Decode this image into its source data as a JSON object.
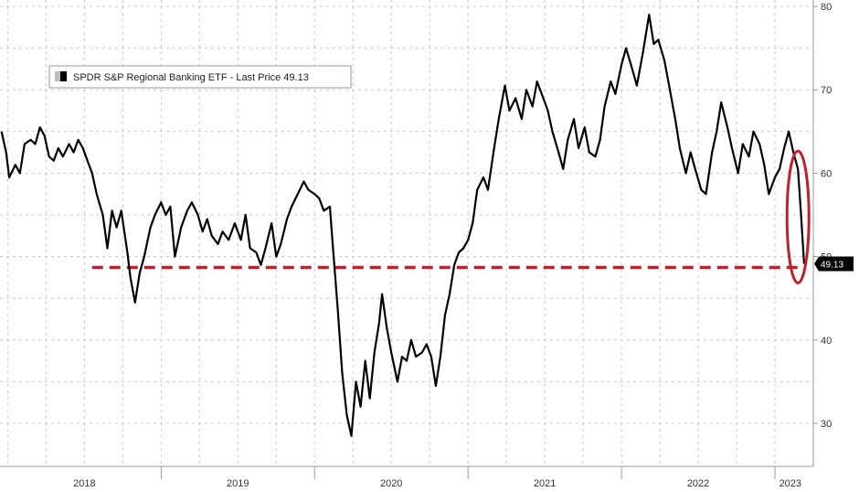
{
  "chart_data": {
    "type": "line",
    "title": "",
    "legend": {
      "label": "SPDR S&P Regional Banking ETF - Last Price 49.13",
      "placement": "top-left"
    },
    "y_axis": {
      "side": "right",
      "range": [
        25,
        80
      ],
      "ticks": [
        "80",
        "70",
        "60",
        "50",
        "40",
        "30"
      ]
    },
    "x_axis": {
      "range": [
        2017.95,
        2023.25
      ],
      "years": [
        {
          "label": "2018",
          "center": 2018.5
        },
        {
          "label": "2019",
          "center": 2019.5
        },
        {
          "label": "2020",
          "center": 2020.5
        },
        {
          "label": "2021",
          "center": 2021.5
        },
        {
          "label": "2022",
          "center": 2022.5
        },
        {
          "label": "2023",
          "center": 2023.1
        }
      ],
      "boundaries": [
        2019.0,
        2020.0,
        2021.0,
        2022.0,
        2023.0
      ]
    },
    "grid": true,
    "last_value": {
      "label": "49.13",
      "value": 49.13
    },
    "reference_line": {
      "value": 48.7,
      "from": 2018.55,
      "to": 2023.2,
      "color": "#c0202a"
    },
    "highlight_ellipse": {
      "x": 2023.15,
      "y_top": 62,
      "y_bottom": 47.5,
      "color": "#c0202a"
    },
    "series": [
      {
        "color": "#000000",
        "points": [
          [
            2017.96,
            65.0
          ],
          [
            2017.99,
            62.5
          ],
          [
            2018.01,
            59.5
          ],
          [
            2018.05,
            61.0
          ],
          [
            2018.08,
            60.0
          ],
          [
            2018.11,
            63.5
          ],
          [
            2018.15,
            64.0
          ],
          [
            2018.18,
            63.5
          ],
          [
            2018.21,
            65.5
          ],
          [
            2018.24,
            64.5
          ],
          [
            2018.27,
            62.0
          ],
          [
            2018.3,
            61.5
          ],
          [
            2018.33,
            63.0
          ],
          [
            2018.36,
            62.0
          ],
          [
            2018.4,
            63.5
          ],
          [
            2018.43,
            62.5
          ],
          [
            2018.46,
            64.0
          ],
          [
            2018.49,
            63.0
          ],
          [
            2018.52,
            61.5
          ],
          [
            2018.55,
            60.0
          ],
          [
            2018.58,
            57.5
          ],
          [
            2018.62,
            55.0
          ],
          [
            2018.65,
            51.0
          ],
          [
            2018.68,
            55.5
          ],
          [
            2018.71,
            53.5
          ],
          [
            2018.74,
            55.5
          ],
          [
            2018.78,
            50.5
          ],
          [
            2018.8,
            47.5
          ],
          [
            2018.83,
            44.5
          ],
          [
            2018.86,
            48.0
          ],
          [
            2018.89,
            50.0
          ],
          [
            2018.93,
            53.5
          ],
          [
            2018.96,
            55.0
          ],
          [
            2019.0,
            56.5
          ],
          [
            2019.03,
            55.0
          ],
          [
            2019.06,
            56.0
          ],
          [
            2019.09,
            50.0
          ],
          [
            2019.13,
            53.5
          ],
          [
            2019.17,
            55.5
          ],
          [
            2019.2,
            56.5
          ],
          [
            2019.24,
            55.0
          ],
          [
            2019.27,
            53.0
          ],
          [
            2019.3,
            54.5
          ],
          [
            2019.33,
            52.5
          ],
          [
            2019.37,
            51.5
          ],
          [
            2019.4,
            53.0
          ],
          [
            2019.44,
            52.0
          ],
          [
            2019.48,
            54.0
          ],
          [
            2019.52,
            52.0
          ],
          [
            2019.55,
            55.0
          ],
          [
            2019.58,
            51.0
          ],
          [
            2019.62,
            50.5
          ],
          [
            2019.65,
            49.0
          ],
          [
            2019.68,
            51.0
          ],
          [
            2019.72,
            54.0
          ],
          [
            2019.75,
            50.0
          ],
          [
            2019.78,
            51.5
          ],
          [
            2019.82,
            54.5
          ],
          [
            2019.85,
            56.0
          ],
          [
            2019.89,
            57.5
          ],
          [
            2019.93,
            59.0
          ],
          [
            2019.96,
            58.0
          ],
          [
            2020.0,
            57.5
          ],
          [
            2020.03,
            57.0
          ],
          [
            2020.06,
            55.5
          ],
          [
            2020.1,
            56.0
          ],
          [
            2020.12,
            51.0
          ],
          [
            2020.15,
            44.0
          ],
          [
            2020.18,
            36.0
          ],
          [
            2020.21,
            31.0
          ],
          [
            2020.24,
            28.5
          ],
          [
            2020.27,
            35.0
          ],
          [
            2020.3,
            32.0
          ],
          [
            2020.33,
            37.5
          ],
          [
            2020.36,
            33.0
          ],
          [
            2020.39,
            38.5
          ],
          [
            2020.42,
            42.0
          ],
          [
            2020.44,
            45.5
          ],
          [
            2020.47,
            41.5
          ],
          [
            2020.5,
            38.5
          ],
          [
            2020.54,
            35.0
          ],
          [
            2020.57,
            38.0
          ],
          [
            2020.6,
            37.5
          ],
          [
            2020.63,
            40.0
          ],
          [
            2020.66,
            38.0
          ],
          [
            2020.7,
            38.5
          ],
          [
            2020.73,
            39.5
          ],
          [
            2020.76,
            38.0
          ],
          [
            2020.79,
            34.5
          ],
          [
            2020.82,
            38.0
          ],
          [
            2020.85,
            43.0
          ],
          [
            2020.88,
            45.5
          ],
          [
            2020.91,
            49.0
          ],
          [
            2020.94,
            50.5
          ],
          [
            2020.97,
            51.0
          ],
          [
            2021.0,
            52.0
          ],
          [
            2021.03,
            54.0
          ],
          [
            2021.06,
            58.0
          ],
          [
            2021.1,
            59.5
          ],
          [
            2021.13,
            58.0
          ],
          [
            2021.17,
            63.0
          ],
          [
            2021.2,
            66.5
          ],
          [
            2021.24,
            70.5
          ],
          [
            2021.27,
            67.5
          ],
          [
            2021.31,
            69.0
          ],
          [
            2021.35,
            66.5
          ],
          [
            2021.38,
            70.0
          ],
          [
            2021.42,
            68.0
          ],
          [
            2021.45,
            71.0
          ],
          [
            2021.49,
            69.0
          ],
          [
            2021.52,
            67.5
          ],
          [
            2021.55,
            65.0
          ],
          [
            2021.59,
            62.5
          ],
          [
            2021.62,
            60.5
          ],
          [
            2021.65,
            64.0
          ],
          [
            2021.69,
            66.5
          ],
          [
            2021.72,
            63.0
          ],
          [
            2021.76,
            65.5
          ],
          [
            2021.79,
            62.5
          ],
          [
            2021.83,
            62.0
          ],
          [
            2021.86,
            64.0
          ],
          [
            2021.89,
            68.0
          ],
          [
            2021.93,
            71.0
          ],
          [
            2021.96,
            69.5
          ],
          [
            2022.0,
            73.0
          ],
          [
            2022.03,
            75.0
          ],
          [
            2022.07,
            72.5
          ],
          [
            2022.1,
            70.5
          ],
          [
            2022.14,
            74.5
          ],
          [
            2022.18,
            79.0
          ],
          [
            2022.21,
            75.5
          ],
          [
            2022.24,
            76.0
          ],
          [
            2022.28,
            73.5
          ],
          [
            2022.31,
            70.5
          ],
          [
            2022.35,
            66.5
          ],
          [
            2022.38,
            63.0
          ],
          [
            2022.42,
            60.0
          ],
          [
            2022.45,
            62.5
          ],
          [
            2022.48,
            60.5
          ],
          [
            2022.52,
            58.0
          ],
          [
            2022.55,
            57.5
          ],
          [
            2022.59,
            62.5
          ],
          [
            2022.62,
            65.0
          ],
          [
            2022.65,
            68.5
          ],
          [
            2022.69,
            65.5
          ],
          [
            2022.72,
            63.0
          ],
          [
            2022.76,
            60.0
          ],
          [
            2022.79,
            63.5
          ],
          [
            2022.83,
            62.0
          ],
          [
            2022.86,
            65.0
          ],
          [
            2022.9,
            63.5
          ],
          [
            2022.93,
            61.0
          ],
          [
            2022.96,
            57.5
          ],
          [
            2023.0,
            59.5
          ],
          [
            2023.03,
            60.5
          ],
          [
            2023.06,
            63.0
          ],
          [
            2023.09,
            65.0
          ],
          [
            2023.12,
            62.5
          ],
          [
            2023.15,
            60.5
          ],
          [
            2023.17,
            55.0
          ],
          [
            2023.19,
            49.13
          ]
        ]
      }
    ]
  }
}
